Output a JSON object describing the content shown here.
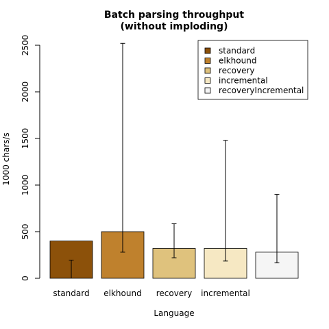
{
  "chart_data": {
    "type": "bar",
    "title_line1": "Batch parsing throughput",
    "title_line2": "(without imploding)",
    "xlabel": "Language",
    "ylabel": "1000 chars/s",
    "ylim": [
      0,
      2500
    ],
    "yticks": [
      0,
      500,
      1000,
      1500,
      2000,
      2500
    ],
    "categories": [
      "standard",
      "elkhound",
      "recovery",
      "incremental",
      "recoveryIncremental"
    ],
    "category_tick_labels": [
      "standard",
      "elkhound",
      "recovery",
      "incremental",
      ""
    ],
    "values": [
      400,
      500,
      320,
      320,
      280
    ],
    "error_low": [
      0,
      280,
      220,
      185,
      165
    ],
    "error_high": [
      195,
      2520,
      585,
      1480,
      900
    ],
    "colors": [
      "#8c510a",
      "#bf812d",
      "#dfc27d",
      "#f6e8c3",
      "#f5f5f5"
    ],
    "legend_entries": [
      "standard",
      "elkhound",
      "recovery",
      "incremental",
      "recoveryIncremental"
    ],
    "legend_position": "top-right",
    "grid": false
  }
}
